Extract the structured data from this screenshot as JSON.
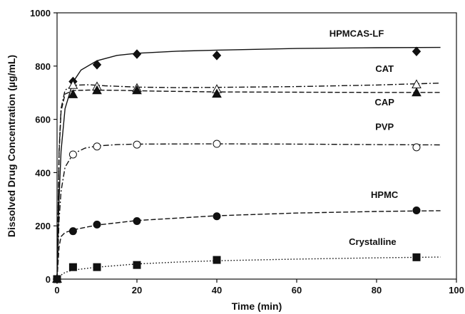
{
  "chart_data": {
    "type": "scatter",
    "xlabel": "Time (min)",
    "ylabel": "Dissolved Drug Concentration (µg/mL)",
    "xlim": [
      0,
      100
    ],
    "ylim": [
      0,
      1000
    ],
    "xticks": [
      0,
      20,
      40,
      60,
      80,
      100
    ],
    "yticks": [
      0,
      200,
      400,
      600,
      800,
      1000
    ],
    "grid": false,
    "legend": "none",
    "series": [
      {
        "name": "HPMCAS-LF",
        "marker": "diamond-filled",
        "line_style": "solid",
        "x": [
          0,
          4,
          10,
          20,
          40,
          90
        ],
        "y": [
          0,
          742,
          805,
          845,
          840,
          855
        ],
        "fit": [
          [
            0,
            0
          ],
          [
            0.5,
            300
          ],
          [
            1,
            480
          ],
          [
            2,
            640
          ],
          [
            4,
            740
          ],
          [
            6,
            785
          ],
          [
            10,
            820
          ],
          [
            15,
            840
          ],
          [
            20,
            848
          ],
          [
            30,
            856
          ],
          [
            40,
            860
          ],
          [
            60,
            866
          ],
          [
            80,
            869
          ],
          [
            96,
            870
          ]
        ]
      },
      {
        "name": "CAT",
        "marker": "triangle-open",
        "line_style": "dashdot",
        "x": [
          0,
          4,
          10,
          20,
          40,
          90
        ],
        "y": [
          0,
          728,
          722,
          716,
          712,
          730
        ],
        "fit": [
          [
            0,
            0
          ],
          [
            0.5,
            480
          ],
          [
            1,
            640
          ],
          [
            2,
            710
          ],
          [
            4,
            728
          ],
          [
            8,
            730
          ],
          [
            12,
            726
          ],
          [
            20,
            721
          ],
          [
            30,
            719
          ],
          [
            40,
            720
          ],
          [
            60,
            723
          ],
          [
            80,
            729
          ],
          [
            96,
            736
          ]
        ]
      },
      {
        "name": "CAP",
        "marker": "triangle-filled",
        "line_style": "dashed",
        "x": [
          0,
          4,
          10,
          20,
          40,
          90
        ],
        "y": [
          0,
          693,
          708,
          708,
          695,
          700
        ],
        "fit": [
          [
            0,
            0
          ],
          [
            0.5,
            470
          ],
          [
            1,
            630
          ],
          [
            2,
            695
          ],
          [
            4,
            708
          ],
          [
            8,
            710
          ],
          [
            15,
            709
          ],
          [
            25,
            706
          ],
          [
            40,
            703
          ],
          [
            60,
            702
          ],
          [
            80,
            701
          ],
          [
            96,
            701
          ]
        ]
      },
      {
        "name": "PVP",
        "marker": "circle-open",
        "line_style": "dashdot",
        "x": [
          0,
          4,
          10,
          20,
          40,
          90
        ],
        "y": [
          0,
          468,
          498,
          505,
          508,
          495
        ],
        "fit": [
          [
            0,
            0
          ],
          [
            0.5,
            220
          ],
          [
            1,
            330
          ],
          [
            2,
            420
          ],
          [
            4,
            470
          ],
          [
            7,
            492
          ],
          [
            10,
            500
          ],
          [
            15,
            505
          ],
          [
            20,
            507
          ],
          [
            40,
            508
          ],
          [
            60,
            507
          ],
          [
            80,
            505
          ],
          [
            96,
            504
          ]
        ]
      },
      {
        "name": "HPMC",
        "marker": "circle-filled",
        "line_style": "dashed",
        "x": [
          0,
          4,
          10,
          20,
          40,
          90
        ],
        "y": [
          0,
          180,
          205,
          218,
          236,
          258
        ],
        "fit": [
          [
            0,
            0
          ],
          [
            0.5,
            120
          ],
          [
            1,
            160
          ],
          [
            2,
            175
          ],
          [
            4,
            185
          ],
          [
            10,
            203
          ],
          [
            20,
            220
          ],
          [
            40,
            238
          ],
          [
            60,
            248
          ],
          [
            80,
            254
          ],
          [
            96,
            257
          ]
        ]
      },
      {
        "name": "Crystalline",
        "marker": "square-filled",
        "line_style": "dotted",
        "x": [
          0,
          4,
          10,
          20,
          40,
          90
        ],
        "y": [
          0,
          45,
          45,
          53,
          72,
          82
        ],
        "fit": [
          [
            0,
            0
          ],
          [
            1,
            15
          ],
          [
            2,
            25
          ],
          [
            4,
            34
          ],
          [
            10,
            45
          ],
          [
            20,
            57
          ],
          [
            30,
            64
          ],
          [
            40,
            69
          ],
          [
            60,
            75
          ],
          [
            80,
            80
          ],
          [
            96,
            83
          ]
        ]
      }
    ]
  }
}
